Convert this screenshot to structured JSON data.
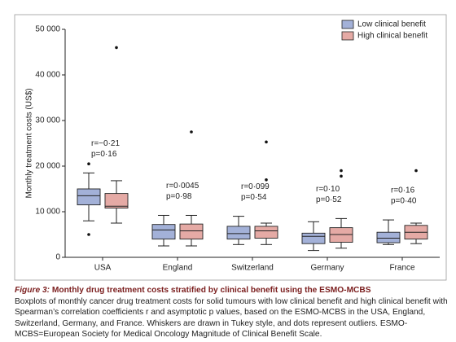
{
  "chart_data": {
    "type": "box",
    "ylabel": "Monthly treatment costs (US$)",
    "categories": [
      "USA",
      "England",
      "Switzerland",
      "Germany",
      "France"
    ],
    "ylim": [
      0,
      50000
    ],
    "yticks": [
      0,
      {
        "value": 10000,
        "label": "10 000"
      },
      {
        "value": 20000,
        "label": "20 000"
      },
      {
        "value": 30000,
        "label": "30 000"
      },
      {
        "value": 40000,
        "label": "40 000"
      },
      {
        "value": 50000,
        "label": "50 000"
      }
    ],
    "legend": "top-right",
    "series": [
      {
        "name": "Low clinical benefit",
        "color": "#a3b1d8",
        "boxes": [
          {
            "whislo": 8000,
            "q1": 11500,
            "med": 13500,
            "q3": 15000,
            "whishi": 18500,
            "fliers": [
              20500,
              5000
            ]
          },
          {
            "whislo": 2500,
            "q1": 4000,
            "med": 6000,
            "q3": 7200,
            "whishi": 9200,
            "fliers": []
          },
          {
            "whislo": 2800,
            "q1": 4000,
            "med": 5200,
            "q3": 6800,
            "whishi": 9000,
            "fliers": []
          },
          {
            "whislo": 1500,
            "q1": 3000,
            "med": 4600,
            "q3": 5300,
            "whishi": 7800,
            "fliers": []
          },
          {
            "whislo": 2800,
            "q1": 3200,
            "med": 4200,
            "q3": 5500,
            "whishi": 8200,
            "fliers": []
          }
        ]
      },
      {
        "name": "High clinical benefit",
        "color": "#e5aaa5",
        "boxes": [
          {
            "whislo": 7500,
            "q1": 10800,
            "med": 11200,
            "q3": 14000,
            "whishi": 16800,
            "fliers": [
              46000
            ]
          },
          {
            "whislo": 2500,
            "q1": 4000,
            "med": 5800,
            "q3": 7300,
            "whishi": 9200,
            "fliers": [
              27500
            ]
          },
          {
            "whislo": 2800,
            "q1": 4200,
            "med": 5800,
            "q3": 6800,
            "whishi": 7500,
            "fliers": [
              25300,
              17000
            ]
          },
          {
            "whislo": 2000,
            "q1": 3300,
            "med": 5000,
            "q3": 6500,
            "whishi": 8500,
            "fliers": [
              19000,
              17800
            ]
          },
          {
            "whislo": 3000,
            "q1": 4000,
            "med": 5500,
            "q3": 7000,
            "whishi": 7500,
            "fliers": [
              19000
            ]
          }
        ]
      }
    ],
    "annotations": [
      {
        "r": "r=−0·21",
        "p": "p=0·16"
      },
      {
        "r": "r=0·0045",
        "p": "p=0·98"
      },
      {
        "r": "r=0·099",
        "p": "p=0·54"
      },
      {
        "r": "r=0·10",
        "p": "p=0·52"
      },
      {
        "r": "r=0·16",
        "p": "p=0·40"
      }
    ]
  },
  "caption": {
    "label": "Figure 3:",
    "title": "Monthly drug treatment costs stratified by clinical benefit using the ESMO-MCBS",
    "text": "Boxplots of monthly cancer drug treatment costs for solid tumours with low clinical benefit and high clinical benefit with Spearman’s correlation coefficients r and asymptotic p values, based on the ESMO-MCBS in the USA, England, Switzerland, Germany, and France. Whiskers are drawn in Tukey style, and dots represent outliers. ESMO-MCBS=European Society for Medical Oncology Magnitude of Clinical Benefit Scale."
  }
}
